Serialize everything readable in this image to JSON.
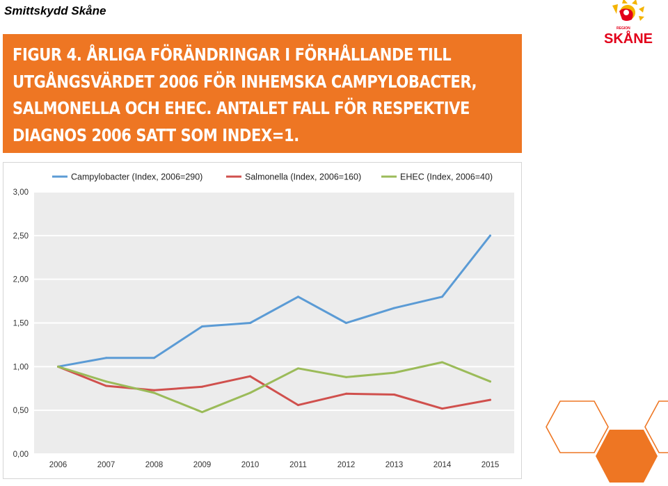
{
  "header": {
    "title": "Smittskydd Skåne"
  },
  "logo": {
    "small_text": "REGION",
    "name": "SKÅNE",
    "colors": {
      "orange": "#ee7623",
      "yellow": "#f4b400",
      "red": "#e2001a"
    }
  },
  "banner": {
    "lines": [
      "FIGUR 4. ÅRLIGA FÖRÄNDRINGAR I FÖRHÅLLANDE TILL",
      "UTGÅNGSVÄRDET 2006 FÖR INHEMSKA CAMPYLOBACTER,",
      "SALMONELLA OCH EHEC. ANTALET FALL FÖR RESPEKTIVE",
      "DIAGNOS 2006 SATT SOM INDEX=1."
    ],
    "color": "#ee7623"
  },
  "chart_data": {
    "type": "line",
    "title": "FIGUR 4. ÅRLIGA FÖRÄNDRINGAR I FÖRHÅLLANDE TILL UTGÅNGSVÄRDET 2006 FÖR INHEMSKA CAMPYLOBACTER, SALMONELLA OCH EHEC. ANTALET FALL FÖR RESPEKTIVE DIAGNOS 2006 SATT SOM INDEX=1.",
    "categories": [
      "2006",
      "2007",
      "2008",
      "2009",
      "2010",
      "2011",
      "2012",
      "2013",
      "2014",
      "2015"
    ],
    "series": [
      {
        "name": "Campylobacter (Index, 2006=290)",
        "color": "#5b9bd5",
        "values": [
          1.0,
          1.1,
          1.1,
          1.46,
          1.5,
          1.8,
          1.5,
          1.67,
          1.8,
          2.5
        ]
      },
      {
        "name": "Salmonella (Index, 2006=160)",
        "color": "#d0504d",
        "values": [
          1.0,
          0.78,
          0.73,
          0.77,
          0.89,
          0.56,
          0.69,
          0.68,
          0.52,
          0.62
        ]
      },
      {
        "name": "EHEC (Index, 2006=40)",
        "color": "#9bbb59",
        "values": [
          1.0,
          0.83,
          0.7,
          0.48,
          0.7,
          0.98,
          0.88,
          0.93,
          1.05,
          0.83
        ]
      }
    ],
    "ylim": [
      0,
      3
    ],
    "yticks": [
      "0,00",
      "0,50",
      "1,00",
      "1,50",
      "2,00",
      "2,50",
      "3,00"
    ],
    "grid": true,
    "legend": "top",
    "xlabel": "",
    "ylabel": ""
  }
}
